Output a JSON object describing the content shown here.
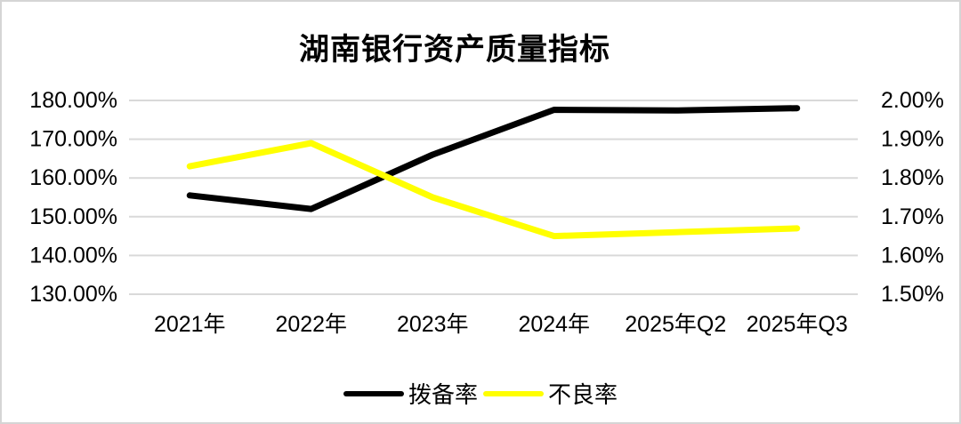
{
  "window": {
    "background": "#ffffff",
    "border_color": "#d5d5d5"
  },
  "chart_data": {
    "type": "line",
    "title": "湖南银行资产质量指标",
    "categories": [
      "2021年",
      "2022年",
      "2023年",
      "2024年",
      "2025年Q2",
      "2025年Q3"
    ],
    "series": [
      {
        "id": "provision-coverage-ratio",
        "name": "拨备率",
        "axis": "left",
        "color": "#000000",
        "values": [
          155.5,
          152.0,
          166.0,
          177.6,
          177.4,
          178.0
        ]
      },
      {
        "id": "npl-ratio",
        "name": "不良率",
        "axis": "right",
        "color": "#ffff00",
        "values": [
          1.83,
          1.89,
          1.75,
          1.65,
          1.66,
          1.67
        ]
      }
    ],
    "left_axis": {
      "min": 130,
      "max": 180,
      "ticks": [
        "180.00%",
        "170.00%",
        "160.00%",
        "150.00%",
        "140.00%",
        "130.00%"
      ]
    },
    "right_axis": {
      "min": 1.5,
      "max": 2.0,
      "ticks": [
        "2.00%",
        "1.90%",
        "1.80%",
        "1.70%",
        "1.60%",
        "1.50%"
      ]
    },
    "grid": true,
    "gridline_color": "#d9d9d9",
    "legend_position": "bottom"
  }
}
